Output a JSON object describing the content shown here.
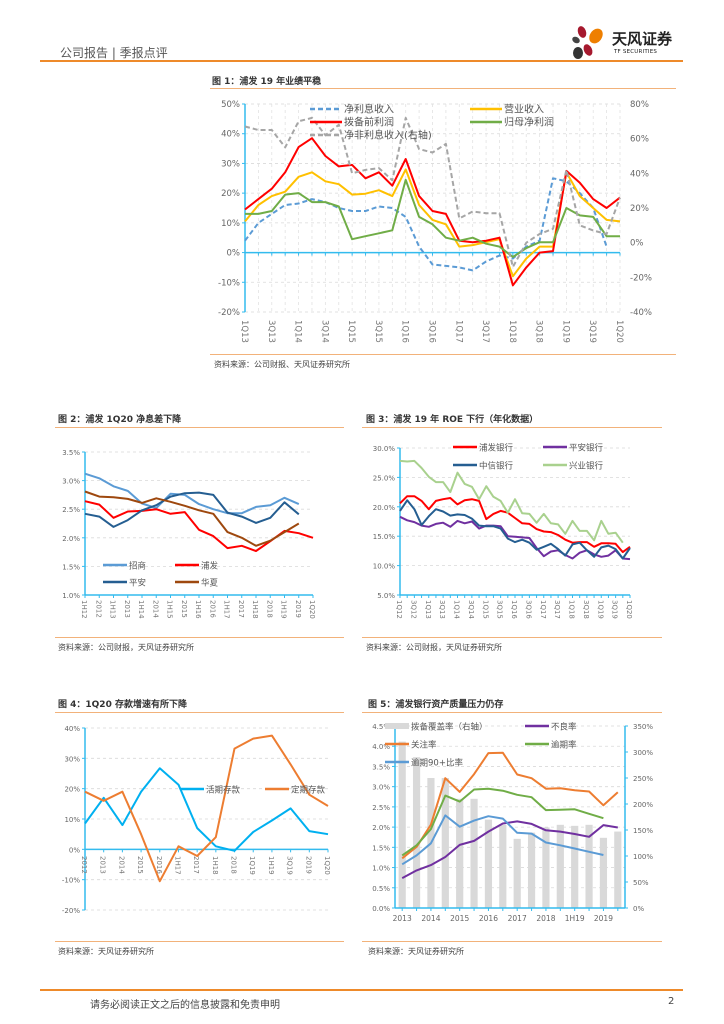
{
  "header": {
    "section": "公司报告 | 季报点评",
    "logo_cn": "天风证券",
    "logo_en": "TF SECURITIES"
  },
  "footer": {
    "disclaimer": "请务必阅读正文之后的信息披露和免责申明",
    "page_number": "2"
  },
  "figures": [
    {
      "title": "图 1：浦发 19 年业绩平稳",
      "source": "资料来源：公司财报、天风证券研究所"
    },
    {
      "title": "图 2：浦发 1Q20 净息差下降",
      "source": "资料来源：公司财报，天风证券研究所"
    },
    {
      "title": "图 3：浦发 19 年 ROE 下行（年化数据）",
      "source": "资料来源：公司财报，天风证券研究所"
    },
    {
      "title": "图 4：1Q20 存款增速有所下降",
      "source": "资料来源：天风证券研究所"
    },
    {
      "title": "图 5：浦发银行资产质量压力仍存",
      "source": "资料来源：天风证券研究所"
    }
  ],
  "chart_data": [
    {
      "type": "line",
      "title": "图 1：浦发 19 年业绩平稳",
      "x": [
        "1Q13",
        "2Q13",
        "3Q13",
        "4Q13",
        "1Q14",
        "2Q14",
        "3Q14",
        "4Q14",
        "1Q15",
        "2Q15",
        "3Q15",
        "4Q15",
        "1Q16",
        "2Q16",
        "3Q16",
        "4Q16",
        "1Q17",
        "2Q17",
        "3Q17",
        "4Q17",
        "1Q18",
        "2Q18",
        "3Q18",
        "4Q18",
        "1Q19",
        "2Q19",
        "3Q19",
        "4Q19",
        "1Q20"
      ],
      "tick_labels": [
        "1Q13",
        "3Q13",
        "1Q14",
        "3Q14",
        "1Q15",
        "3Q15",
        "1Q16",
        "3Q16",
        "1Q17",
        "3Q17",
        "1Q18",
        "3Q18",
        "1Q19",
        "3Q19",
        "1Q20"
      ],
      "ylim": [
        -20,
        50
      ],
      "y2lim": [
        -40,
        80
      ],
      "yticks": [
        "50%",
        "40%",
        "30%",
        "20%",
        "10%",
        "0%",
        "-10%",
        "-20%"
      ],
      "y2ticks": [
        "80%",
        "60%",
        "40%",
        "20%",
        "0%",
        "-20%",
        "-40%"
      ],
      "grid": true,
      "legend": "top",
      "series": [
        {
          "name": "净利息收入",
          "color": "#5b9bd5",
          "dash": true,
          "axis": "left",
          "values": [
            4,
            10,
            13,
            16,
            16.5,
            18,
            17,
            15,
            14,
            14,
            15.5,
            15,
            12,
            2,
            -4,
            -4.5,
            -5,
            -6,
            -3,
            -1,
            -2,
            2,
            4,
            25,
            24,
            20,
            15,
            2,
            null
          ]
        },
        {
          "name": "营业收入",
          "color": "#ffc000",
          "dash": false,
          "axis": "left",
          "values": [
            10.5,
            16,
            19,
            20.5,
            25.5,
            27,
            24,
            23,
            19.5,
            19.8,
            21,
            19,
            28,
            16,
            11,
            9.5,
            2,
            2.5,
            3.5,
            4.5,
            -8,
            -2,
            2,
            2,
            27,
            19,
            15,
            11,
            10.5
          ]
        },
        {
          "name": "拨备前利润",
          "color": "#ff0000",
          "dash": false,
          "axis": "left",
          "values": [
            14.5,
            18,
            21.5,
            27,
            35.5,
            38.5,
            32.5,
            29,
            29.5,
            25,
            27,
            22.5,
            31.5,
            19,
            14,
            13,
            4,
            3.5,
            4,
            5,
            -11,
            -5,
            0,
            0.5,
            27.5,
            23.5,
            18,
            15,
            18.5
          ]
        },
        {
          "name": "归母净利润",
          "color": "#70ad47",
          "dash": false,
          "axis": "left",
          "values": [
            13,
            13,
            14,
            19.5,
            20,
            17,
            17,
            15.5,
            4.5,
            5.5,
            6.5,
            7.5,
            24.5,
            12,
            9.5,
            5,
            4,
            5,
            3,
            2,
            -1.5,
            1.5,
            3.5,
            3.5,
            15,
            12.5,
            12,
            5.5,
            5.5
          ]
        },
        {
          "name": "净非利息收入(右轴)",
          "color": "#a6a6a6",
          "dash": true,
          "axis": "right",
          "values": [
            67,
            65,
            65,
            55,
            70,
            72,
            62,
            68,
            40,
            42,
            43,
            36,
            72,
            54,
            52,
            57,
            14,
            18,
            17,
            17,
            -14,
            0,
            5,
            8,
            42,
            10,
            7,
            5,
            26
          ]
        }
      ]
    },
    {
      "type": "line",
      "title": "图 2：浦发 1Q20 净息差下降",
      "x": [
        "1H12",
        "2012",
        "1H13",
        "2013",
        "1H14",
        "2014",
        "1H15",
        "2015",
        "1H16",
        "2016",
        "1H17",
        "2017",
        "1H18",
        "2018",
        "1H19",
        "2019",
        "1Q20"
      ],
      "ylim": [
        1.0,
        3.5
      ],
      "yticks": [
        "3.5%",
        "3.0%",
        "2.5%",
        "2.0%",
        "1.5%",
        "1.0%"
      ],
      "grid": true,
      "legend": "bottom-left",
      "series": [
        {
          "name": "招商",
          "color": "#5b9bd5",
          "values": [
            3.12,
            3.04,
            2.9,
            2.82,
            2.6,
            2.52,
            2.77,
            2.75,
            2.59,
            2.5,
            2.43,
            2.43,
            2.54,
            2.57,
            2.7,
            2.59,
            null
          ]
        },
        {
          "name": "浦发",
          "color": "#ff0000",
          "values": [
            2.64,
            2.58,
            2.35,
            2.46,
            2.47,
            2.5,
            2.42,
            2.45,
            2.14,
            2.03,
            1.82,
            1.86,
            1.77,
            1.94,
            2.12,
            2.08,
            2.0
          ]
        },
        {
          "name": "平安",
          "color": "#255e91",
          "values": [
            2.42,
            2.37,
            2.19,
            2.31,
            2.48,
            2.57,
            2.72,
            2.78,
            2.79,
            2.75,
            2.44,
            2.37,
            2.26,
            2.35,
            2.62,
            2.41,
            null
          ]
        },
        {
          "name": "华夏",
          "color": "#9e480e",
          "values": [
            2.81,
            2.72,
            2.71,
            2.68,
            2.61,
            2.69,
            2.63,
            2.56,
            2.48,
            2.42,
            2.1,
            2.0,
            1.86,
            1.95,
            2.1,
            2.25,
            null
          ]
        }
      ]
    },
    {
      "type": "line",
      "title": "图 3：浦发 19 年 ROE 下行（年化数据）",
      "x": [
        "1Q12",
        "2Q12",
        "3Q12",
        "4Q12",
        "1Q13",
        "2Q13",
        "3Q13",
        "4Q13",
        "1Q14",
        "2Q14",
        "3Q14",
        "4Q14",
        "1Q15",
        "2Q15",
        "3Q15",
        "4Q15",
        "1Q16",
        "2Q16",
        "3Q16",
        "4Q16",
        "1Q17",
        "2Q17",
        "3Q17",
        "4Q17",
        "1Q18",
        "2Q18",
        "3Q18",
        "4Q18",
        "1Q19",
        "2Q19",
        "3Q19",
        "4Q19",
        "1Q20"
      ],
      "tick_labels": [
        "1Q12",
        "3Q12",
        "1Q13",
        "3Q13",
        "1Q14",
        "3Q14",
        "1Q15",
        "3Q15",
        "1Q16",
        "3Q16",
        "1Q17",
        "3Q17",
        "1Q18",
        "3Q18",
        "1Q19",
        "3Q19",
        "1Q20"
      ],
      "ylim": [
        5.0,
        30.0
      ],
      "yticks": [
        "30.0%",
        "25.0%",
        "20.0%",
        "15.0%",
        "10.0%",
        "5.0%"
      ],
      "grid": true,
      "legend": "top",
      "series": [
        {
          "name": "浦发银行",
          "color": "#ff0000",
          "values": [
            20.6,
            21.8,
            21.8,
            21.0,
            19.6,
            21.0,
            21.3,
            21.5,
            20.4,
            21.1,
            21.3,
            21.0,
            17.9,
            18.8,
            19.3,
            19.0,
            18.1,
            17.2,
            17.1,
            16.2,
            15.8,
            15.7,
            15.2,
            14.4,
            13.9,
            14.0,
            14.0,
            13.2,
            13.8,
            13.8,
            13.7,
            12.3,
            13.2
          ]
        },
        {
          "name": "平安银行",
          "color": "#7030a0",
          "values": [
            18.3,
            17.7,
            17.4,
            16.8,
            16.6,
            17.1,
            17.3,
            16.6,
            17.6,
            17.2,
            17.5,
            16.3,
            16.8,
            16.8,
            16.7,
            15.0,
            14.9,
            14.8,
            14.7,
            13.0,
            11.6,
            12.4,
            12.6,
            11.8,
            11.2,
            12.2,
            12.6,
            11.9,
            11.5,
            11.7,
            12.6,
            11.2,
            11.1
          ]
        },
        {
          "name": "中信银行",
          "color": "#255e91",
          "values": [
            19.3,
            21.1,
            19.6,
            16.9,
            18.4,
            19.6,
            19.2,
            18.5,
            18.7,
            18.6,
            18.0,
            16.8,
            16.7,
            16.7,
            16.3,
            14.6,
            14.0,
            14.4,
            13.9,
            12.7,
            13.2,
            13.7,
            12.8,
            11.7,
            13.6,
            13.9,
            12.6,
            11.5,
            13.1,
            13.4,
            12.8,
            11.2,
            13.0
          ]
        },
        {
          "name": "兴业银行",
          "color": "#a9d18e",
          "values": [
            27.8,
            27.7,
            27.8,
            26.6,
            25.1,
            24.2,
            24.2,
            22.5,
            25.8,
            23.9,
            23.4,
            21.3,
            23.5,
            21.7,
            21.0,
            19.0,
            21.3,
            18.9,
            18.8,
            17.3,
            18.8,
            17.2,
            17.0,
            15.4,
            17.6,
            15.9,
            15.9,
            14.3,
            17.6,
            15.4,
            15.6,
            13.9,
            null
          ]
        }
      ]
    },
    {
      "type": "line",
      "title": "图 4：1Q20 存款增速有所下降",
      "x": [
        "2012",
        "2013",
        "2014",
        "2015",
        "2016",
        "1H17",
        "2017",
        "1H18",
        "2018",
        "1Q19",
        "1H19",
        "3Q19",
        "2019",
        "1Q20"
      ],
      "ylim": [
        -20,
        40
      ],
      "yticks": [
        "40%",
        "30%",
        "20%",
        "10%",
        "0%",
        "-10%",
        "-20%"
      ],
      "grid": true,
      "legend": "right",
      "series": [
        {
          "name": "活期存款",
          "color": "#00b0f0",
          "values": [
            8.5,
            17,
            8,
            19,
            26.7,
            21.3,
            7,
            1,
            -0.5,
            5.7,
            9.5,
            13.5,
            6,
            5
          ]
        },
        {
          "name": "定期存款",
          "color": "#ed7d31",
          "values": [
            19,
            16,
            19,
            5,
            -10.5,
            1,
            -2.2,
            4,
            33.2,
            36.5,
            37.5,
            28,
            18,
            14.3
          ]
        }
      ]
    },
    {
      "type": "bar+line",
      "title": "图 5：浦发银行资产质量压力仍存",
      "x": [
        "2013",
        "1H14",
        "2014",
        "1H15",
        "2015",
        "1H16",
        "2016",
        "1H17",
        "2017",
        "1H18",
        "2018",
        "2H18",
        "1H19",
        "3Q19",
        "2019",
        "1Q20"
      ],
      "tick_labels": [
        "2013",
        "2014",
        "2015",
        "2016",
        "2017",
        "2018",
        "1H19",
        "2019"
      ],
      "ylim": [
        0,
        4.5
      ],
      "y2lim": [
        0,
        350
      ],
      "yticks": [
        "4.5%",
        "4.0%",
        "3.5%",
        "3.0%",
        "2.5%",
        "2.0%",
        "1.5%",
        "1.0%",
        "0.5%",
        "0.0%"
      ],
      "y2ticks": [
        "350%",
        "300%",
        "250%",
        "200%",
        "150%",
        "100%",
        "50%",
        "0%"
      ],
      "grid": true,
      "legend": "top",
      "bars": {
        "name": "拨备覆盖率（右轴）",
        "color": "#d9d9d9",
        "values": [
          320,
          290,
          250,
          250,
          210,
          210,
          170,
          160,
          133,
          145,
          155,
          160,
          158,
          160,
          135,
          147
        ]
      },
      "series": [
        {
          "name": "不良率",
          "color": "#7030a0",
          "values": [
            0.74,
            0.93,
            1.06,
            1.26,
            1.56,
            1.66,
            1.89,
            2.09,
            2.14,
            2.08,
            1.92,
            1.89,
            1.83,
            1.76,
            2.05,
            1.99
          ]
        },
        {
          "name": "关注率",
          "color": "#ed7d31",
          "values": [
            1.23,
            1.51,
            2.06,
            3.21,
            2.87,
            3.31,
            3.83,
            3.84,
            3.3,
            3.21,
            2.95,
            2.96,
            2.91,
            2.88,
            2.54,
            2.86
          ]
        },
        {
          "name": "逾期率",
          "color": "#70ad47",
          "values": [
            1.3,
            1.55,
            1.95,
            2.78,
            2.63,
            2.93,
            2.95,
            2.9,
            2.8,
            2.74,
            2.42,
            2.43,
            2.44,
            2.33,
            2.22,
            null
          ]
        },
        {
          "name": "逾期90+比率",
          "color": "#5b9bd5",
          "values": [
            1.08,
            1.3,
            1.6,
            2.29,
            2.01,
            2.16,
            2.27,
            2.21,
            1.86,
            1.84,
            1.62,
            1.55,
            1.47,
            1.39,
            1.31,
            null
          ]
        }
      ]
    }
  ]
}
